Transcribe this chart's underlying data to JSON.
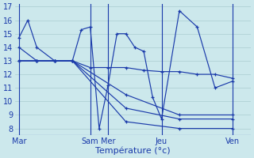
{
  "background_color": "#cce8ec",
  "grid_color": "#aaccd0",
  "line_color": "#1a3aaa",
  "xlabel": "Température (°c)",
  "tick_labels": [
    "Mar",
    "Sam",
    "Mer",
    "Jeu",
    "Ven"
  ],
  "ylim": [
    7.5,
    17.2
  ],
  "yticks": [
    8,
    9,
    10,
    11,
    12,
    13,
    14,
    15,
    16,
    17
  ],
  "xlim": [
    -0.2,
    13.0
  ],
  "lines": [
    {
      "x": [
        0,
        0.5,
        1,
        2,
        3,
        3.5,
        4,
        4.5,
        5,
        5.5,
        6,
        6.5,
        7,
        7.5,
        8,
        9,
        10,
        11,
        12
      ],
      "y": [
        14.7,
        16.0,
        14.0,
        13.0,
        13.0,
        15.3,
        15.5,
        8.0,
        11.2,
        15.0,
        15.0,
        14.0,
        13.7,
        10.3,
        8.7,
        16.7,
        15.5,
        11.0,
        11.5
      ]
    },
    {
      "x": [
        0,
        1,
        2,
        3,
        6,
        9,
        12
      ],
      "y": [
        14.0,
        13.0,
        13.0,
        13.0,
        10.5,
        9.0,
        9.0
      ]
    },
    {
      "x": [
        0,
        1,
        2,
        3,
        6,
        9,
        12
      ],
      "y": [
        13.0,
        13.0,
        13.0,
        13.0,
        9.5,
        8.7,
        8.7
      ]
    },
    {
      "x": [
        0,
        1,
        2,
        3,
        6,
        9,
        12
      ],
      "y": [
        13.0,
        13.0,
        13.0,
        13.0,
        8.5,
        8.0,
        8.0
      ]
    },
    {
      "x": [
        0,
        1,
        2,
        3,
        4,
        5,
        6,
        7,
        8,
        9,
        10,
        11,
        12
      ],
      "y": [
        13.0,
        13.0,
        13.0,
        13.0,
        12.5,
        12.5,
        12.5,
        12.3,
        12.2,
        12.2,
        12.0,
        12.0,
        11.7
      ]
    }
  ],
  "tick_positions": [
    0,
    4,
    5,
    8,
    12
  ],
  "vline_positions": [
    0,
    4,
    5,
    8,
    12
  ]
}
